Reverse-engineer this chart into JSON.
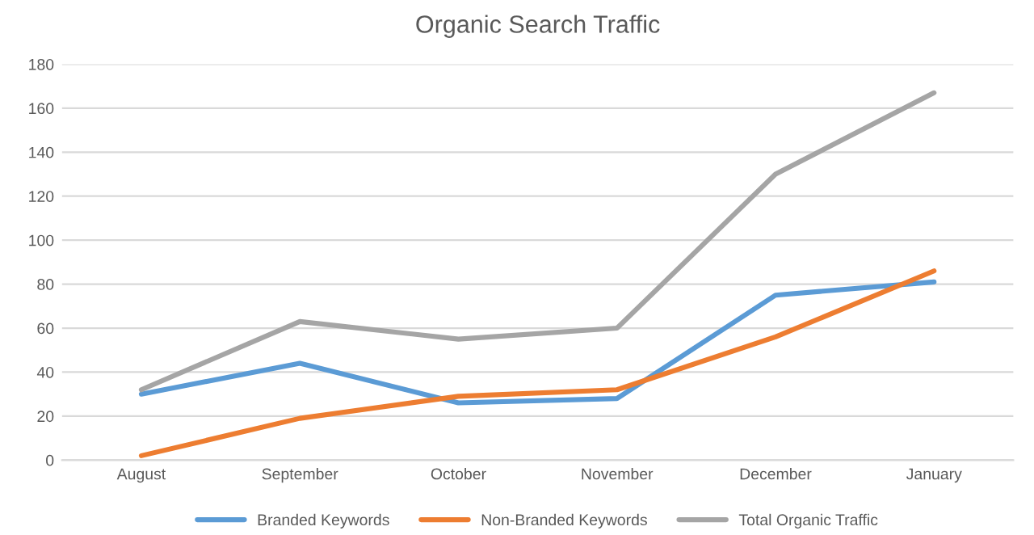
{
  "chart_data": {
    "type": "line",
    "title": "Organic Search Traffic",
    "categories": [
      "August",
      "September",
      "October",
      "November",
      "December",
      "January"
    ],
    "series": [
      {
        "name": "Branded Keywords",
        "color": "#5b9bd5",
        "values": [
          30,
          44,
          26,
          28,
          75,
          81
        ]
      },
      {
        "name": "Non-Branded Keywords",
        "color": "#ed7d31",
        "values": [
          2,
          19,
          29,
          32,
          56,
          86
        ]
      },
      {
        "name": "Total Organic Traffic",
        "color": "#a5a5a5",
        "values": [
          32,
          63,
          55,
          60,
          130,
          167
        ]
      }
    ],
    "ylim": [
      0,
      180
    ],
    "yticks": [
      0,
      20,
      40,
      60,
      80,
      100,
      120,
      140,
      160,
      180
    ],
    "grid": "y",
    "legend": "bottom",
    "marker": "none",
    "line_style": "solid"
  }
}
